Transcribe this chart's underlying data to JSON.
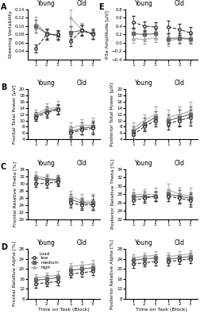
{
  "blocks": [
    1,
    2,
    3
  ],
  "row_A": {
    "ylabel": "Steering Variability",
    "ylim": [
      0.02,
      0.14
    ],
    "yticks": [
      0.04,
      0.06,
      0.08,
      0.1,
      0.12,
      0.14
    ],
    "low_young": [
      0.046,
      0.08,
      0.08
    ],
    "med_young": [
      0.1,
      0.082,
      0.078
    ],
    "high_young": [
      0.108,
      0.083,
      0.076
    ],
    "low_young_e": [
      0.01,
      0.012,
      0.01
    ],
    "med_young_e": [
      0.015,
      0.012,
      0.01
    ],
    "high_young_e": [
      0.015,
      0.012,
      0.01
    ],
    "low_old": [
      0.064,
      0.09,
      0.08
    ],
    "med_old": [
      0.085,
      0.09,
      0.082
    ],
    "high_old": [
      0.12,
      0.092,
      0.082
    ],
    "low_old_e": [
      0.012,
      0.012,
      0.01
    ],
    "med_old_e": [
      0.015,
      0.014,
      0.012
    ],
    "high_old_e": [
      0.02,
      0.015,
      0.012
    ]
  },
  "row_E": {
    "ylabel": "P3a Amplitude [μV]",
    "ylim": [
      -0.4,
      0.8
    ],
    "yticks": [
      -0.4,
      -0.2,
      0.0,
      0.2,
      0.4,
      0.6,
      0.8
    ],
    "low_young": [
      0.5,
      0.4,
      0.38
    ],
    "med_young": [
      0.22,
      0.2,
      0.22
    ],
    "high_young": [
      0.1,
      0.08,
      0.12
    ],
    "low_young_e": [
      0.14,
      0.12,
      0.12
    ],
    "med_young_e": [
      0.12,
      0.1,
      0.1
    ],
    "high_young_e": [
      0.1,
      0.1,
      0.1
    ],
    "low_old": [
      0.38,
      0.32,
      0.24
    ],
    "med_old": [
      0.1,
      0.12,
      0.1
    ],
    "high_old": [
      0.05,
      0.1,
      0.08
    ],
    "low_old_e": [
      0.16,
      0.14,
      0.14
    ],
    "med_old_e": [
      0.12,
      0.12,
      0.1
    ],
    "high_old_e": [
      0.12,
      0.12,
      0.1
    ]
  },
  "row_B_left": {
    "ylabel": "Frontal Total Power [μV]",
    "ylim": [
      4,
      20
    ],
    "yticks": [
      4,
      6,
      8,
      10,
      12,
      14,
      16,
      18,
      20
    ],
    "low_young": [
      11.0,
      12.5,
      13.5
    ],
    "med_young": [
      11.5,
      13.0,
      13.8
    ],
    "high_young": [
      12.0,
      13.8,
      14.2
    ],
    "low_young_e": [
      1.2,
      1.5,
      1.5
    ],
    "med_young_e": [
      1.2,
      1.5,
      1.5
    ],
    "high_young_e": [
      1.5,
      1.8,
      2.0
    ],
    "low_old": [
      6.0,
      7.0,
      7.5
    ],
    "med_old": [
      6.5,
      7.5,
      8.0
    ],
    "high_old": [
      7.5,
      8.5,
      8.5
    ],
    "low_old_e": [
      1.5,
      1.5,
      2.0
    ],
    "med_old_e": [
      1.5,
      1.8,
      2.0
    ],
    "high_old_e": [
      2.0,
      2.0,
      2.5
    ]
  },
  "row_B_right": {
    "ylabel": "Posterior Total Power [μV]",
    "ylim": [
      4,
      20
    ],
    "yticks": [
      4,
      6,
      8,
      10,
      12,
      14,
      16,
      18,
      20
    ],
    "low_young": [
      5.5,
      8.0,
      10.0
    ],
    "med_young": [
      6.5,
      9.0,
      11.0
    ],
    "high_young": [
      7.5,
      10.0,
      12.0
    ],
    "low_young_e": [
      1.5,
      1.5,
      2.0
    ],
    "med_young_e": [
      1.5,
      2.0,
      2.0
    ],
    "high_young_e": [
      2.0,
      2.0,
      2.5
    ],
    "low_old": [
      9.0,
      10.0,
      11.0
    ],
    "med_old": [
      10.0,
      11.0,
      12.0
    ],
    "high_old": [
      11.0,
      12.0,
      13.0
    ],
    "low_old_e": [
      2.0,
      2.0,
      2.5
    ],
    "med_old_e": [
      2.0,
      2.5,
      2.5
    ],
    "high_old_e": [
      2.5,
      2.5,
      3.0
    ]
  },
  "row_C_left": {
    "ylabel": "Frontal Relative Theta [%]",
    "ylim": [
      20,
      34
    ],
    "yticks": [
      20,
      22,
      24,
      26,
      28,
      30,
      32,
      34
    ],
    "low_young": [
      30.0,
      30.0,
      30.5
    ],
    "med_young": [
      31.5,
      31.0,
      31.0
    ],
    "high_young": [
      32.0,
      31.5,
      31.0
    ],
    "low_young_e": [
      1.0,
      1.2,
      1.2
    ],
    "med_young_e": [
      1.0,
      1.2,
      1.2
    ],
    "high_young_e": [
      1.2,
      1.2,
      1.5
    ],
    "low_old": [
      24.5,
      24.0,
      24.0
    ],
    "med_old": [
      25.5,
      24.5,
      24.5
    ],
    "high_old": [
      26.5,
      25.0,
      25.0
    ],
    "low_old_e": [
      1.2,
      1.5,
      1.5
    ],
    "med_old_e": [
      1.5,
      1.5,
      2.0
    ],
    "high_old_e": [
      1.5,
      2.0,
      2.0
    ]
  },
  "row_C_right": {
    "ylabel": "Posterior Relative Theta [%]",
    "ylim": [
      22,
      34
    ],
    "yticks": [
      22,
      24,
      26,
      28,
      30,
      32,
      34
    ],
    "low_young": [
      26.5,
      27.0,
      27.5
    ],
    "med_young": [
      27.5,
      27.5,
      27.5
    ],
    "high_young": [
      28.0,
      28.0,
      28.0
    ],
    "low_young_e": [
      1.0,
      1.0,
      1.2
    ],
    "med_young_e": [
      1.0,
      1.2,
      1.2
    ],
    "high_young_e": [
      1.2,
      1.2,
      1.5
    ],
    "low_old": [
      27.5,
      27.0,
      26.5
    ],
    "med_old": [
      28.0,
      27.5,
      27.0
    ],
    "high_old": [
      29.0,
      28.0,
      27.5
    ],
    "low_old_e": [
      1.2,
      1.2,
      1.5
    ],
    "med_old_e": [
      1.2,
      1.5,
      1.5
    ],
    "high_old_e": [
      1.5,
      1.5,
      2.0
    ]
  },
  "row_D_left": {
    "ylabel": "Frontal Relative Alpha [%]",
    "ylim": [
      8,
      28
    ],
    "yticks": [
      8,
      12,
      16,
      20,
      24,
      28
    ],
    "low_young": [
      14.0,
      14.5,
      15.0
    ],
    "med_young": [
      15.5,
      16.0,
      16.5
    ],
    "high_young": [
      16.5,
      17.0,
      17.5
    ],
    "low_young_e": [
      1.5,
      1.5,
      1.5
    ],
    "med_young_e": [
      1.5,
      1.5,
      1.5
    ],
    "high_young_e": [
      1.5,
      1.5,
      1.5
    ],
    "low_old": [
      18.0,
      18.5,
      19.0
    ],
    "med_old": [
      19.5,
      20.0,
      20.5
    ],
    "high_old": [
      21.0,
      21.5,
      22.0
    ],
    "low_old_e": [
      1.5,
      1.5,
      1.5
    ],
    "med_old_e": [
      1.5,
      1.5,
      1.5
    ],
    "high_old_e": [
      1.5,
      1.5,
      1.5
    ]
  },
  "row_D_right": {
    "ylabel": "Posterior Relative Alpha [%]",
    "ylim": [
      8,
      28
    ],
    "yticks": [
      8,
      12,
      16,
      20,
      24,
      28
    ],
    "low_young": [
      22.0,
      22.5,
      23.0
    ],
    "med_young": [
      23.5,
      24.0,
      24.5
    ],
    "high_young": [
      24.5,
      25.0,
      25.5
    ],
    "low_young_e": [
      1.5,
      1.5,
      1.5
    ],
    "med_young_e": [
      1.5,
      1.5,
      1.5
    ],
    "high_young_e": [
      1.5,
      1.5,
      1.5
    ],
    "low_old": [
      23.0,
      23.5,
      24.0
    ],
    "med_old": [
      24.0,
      24.5,
      25.0
    ],
    "high_old": [
      25.0,
      25.5,
      26.0
    ],
    "low_old_e": [
      1.5,
      1.5,
      1.5
    ],
    "med_old_e": [
      1.5,
      1.5,
      1.5
    ],
    "high_old_e": [
      1.5,
      1.5,
      1.5
    ]
  },
  "color_low": "#333333",
  "color_med": "#666666",
  "color_high": "#aaaaaa",
  "ls_low": "--",
  "ls_med": "-",
  "ls_high": "-",
  "marker_low": "o",
  "marker_med": "s",
  "marker_high": "^",
  "markersize": 2.5,
  "linewidth": 0.8,
  "capsize": 1.5,
  "elinewidth": 0.6,
  "xlabel": "Time on Task (Block)",
  "title_fontsize": 5.5,
  "label_fontsize": 4.5,
  "tick_fontsize": 4.0,
  "legend_fontsize": 4.0
}
